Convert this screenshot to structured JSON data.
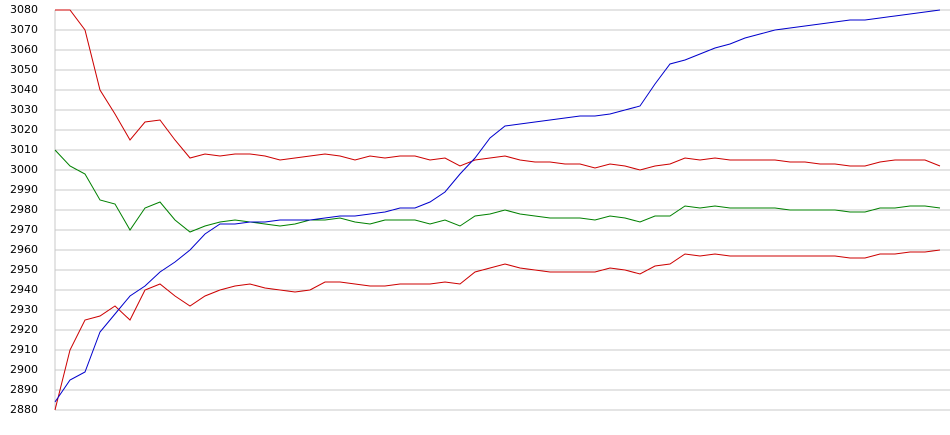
{
  "chart_data": {
    "type": "line",
    "categories": [
      null,
      null,
      null,
      null,
      null,
      null,
      null,
      null,
      null,
      null,
      null,
      null,
      null,
      null,
      null,
      null,
      null,
      null,
      null,
      null,
      null,
      null,
      null,
      null,
      null,
      null,
      null,
      null,
      null,
      null,
      null,
      null,
      null,
      null,
      null,
      null,
      null,
      null,
      null,
      null,
      null,
      null,
      null,
      null,
      null,
      null,
      null,
      null,
      null,
      null,
      null,
      null,
      null,
      null,
      null,
      null,
      null,
      null,
      null,
      null
    ],
    "series": [
      {
        "color": "#cc0000",
        "values": [
          3080,
          3080,
          3070,
          3040,
          3028,
          3015,
          3024,
          3025,
          3015,
          3006,
          3008,
          3007,
          3008,
          3008,
          3007,
          3005,
          3006,
          3007,
          3008,
          3007,
          3005,
          3007,
          3006,
          3007,
          3007,
          3005,
          3006,
          3002,
          3005,
          3006,
          3007,
          3005,
          3004,
          3004,
          3003,
          3003,
          3001,
          3003,
          3002,
          3000,
          3002,
          3003,
          3006,
          3005,
          3006,
          3005,
          3005,
          3005,
          3005,
          3004,
          3004,
          3003,
          3003,
          3002,
          3002,
          3004,
          3005,
          3005,
          3005,
          3002
        ]
      },
      {
        "color": "#008000",
        "values": [
          3010,
          3002,
          2998,
          2985,
          2983,
          2970,
          2981,
          2984,
          2975,
          2969,
          2972,
          2974,
          2975,
          2974,
          2973,
          2972,
          2973,
          2975,
          2975,
          2976,
          2974,
          2973,
          2975,
          2975,
          2975,
          2973,
          2975,
          2972,
          2977,
          2978,
          2980,
          2978,
          2977,
          2976,
          2976,
          2976,
          2975,
          2977,
          2976,
          2974,
          2977,
          2977,
          2982,
          2981,
          2982,
          2981,
          2981,
          2981,
          2981,
          2980,
          2980,
          2980,
          2980,
          2979,
          2979,
          2981,
          2981,
          2982,
          2982,
          2981
        ]
      },
      {
        "color": "#cc0000",
        "values": [
          2880,
          2910,
          2925,
          2927,
          2932,
          2925,
          2940,
          2943,
          2937,
          2932,
          2937,
          2940,
          2942,
          2943,
          2941,
          2940,
          2939,
          2940,
          2944,
          2944,
          2943,
          2942,
          2942,
          2943,
          2943,
          2943,
          2944,
          2943,
          2949,
          2951,
          2953,
          2951,
          2950,
          2949,
          2949,
          2949,
          2949,
          2951,
          2950,
          2948,
          2952,
          2953,
          2958,
          2957,
          2958,
          2957,
          2957,
          2957,
          2957,
          2957,
          2957,
          2957,
          2957,
          2956,
          2956,
          2958,
          2958,
          2959,
          2959,
          2960
        ]
      },
      {
        "color": "#0000cc",
        "values": [
          2884,
          2895,
          2899,
          2919,
          2928,
          2937,
          2942,
          2949,
          2954,
          2960,
          2968,
          2973,
          2973,
          2974,
          2974,
          2975,
          2975,
          2975,
          2976,
          2977,
          2977,
          2978,
          2979,
          2981,
          2981,
          2984,
          2989,
          2998,
          3006,
          3016,
          3022,
          3023,
          3024,
          3025,
          3026,
          3027,
          3027,
          3028,
          3030,
          3032,
          3043,
          3053,
          3055,
          3058,
          3061,
          3063,
          3066,
          3068,
          3070,
          3071,
          3072,
          3073,
          3074,
          3075,
          3075,
          3076,
          3077,
          3078,
          3079,
          3080
        ]
      }
    ],
    "ylim": [
      2880,
      3080
    ],
    "yticks": [
      2880,
      2890,
      2900,
      2910,
      2920,
      2930,
      2940,
      2950,
      2960,
      2970,
      2980,
      2990,
      3000,
      3010,
      3020,
      3030,
      3040,
      3050,
      3060,
      3070,
      3080
    ],
    "grid": true
  }
}
